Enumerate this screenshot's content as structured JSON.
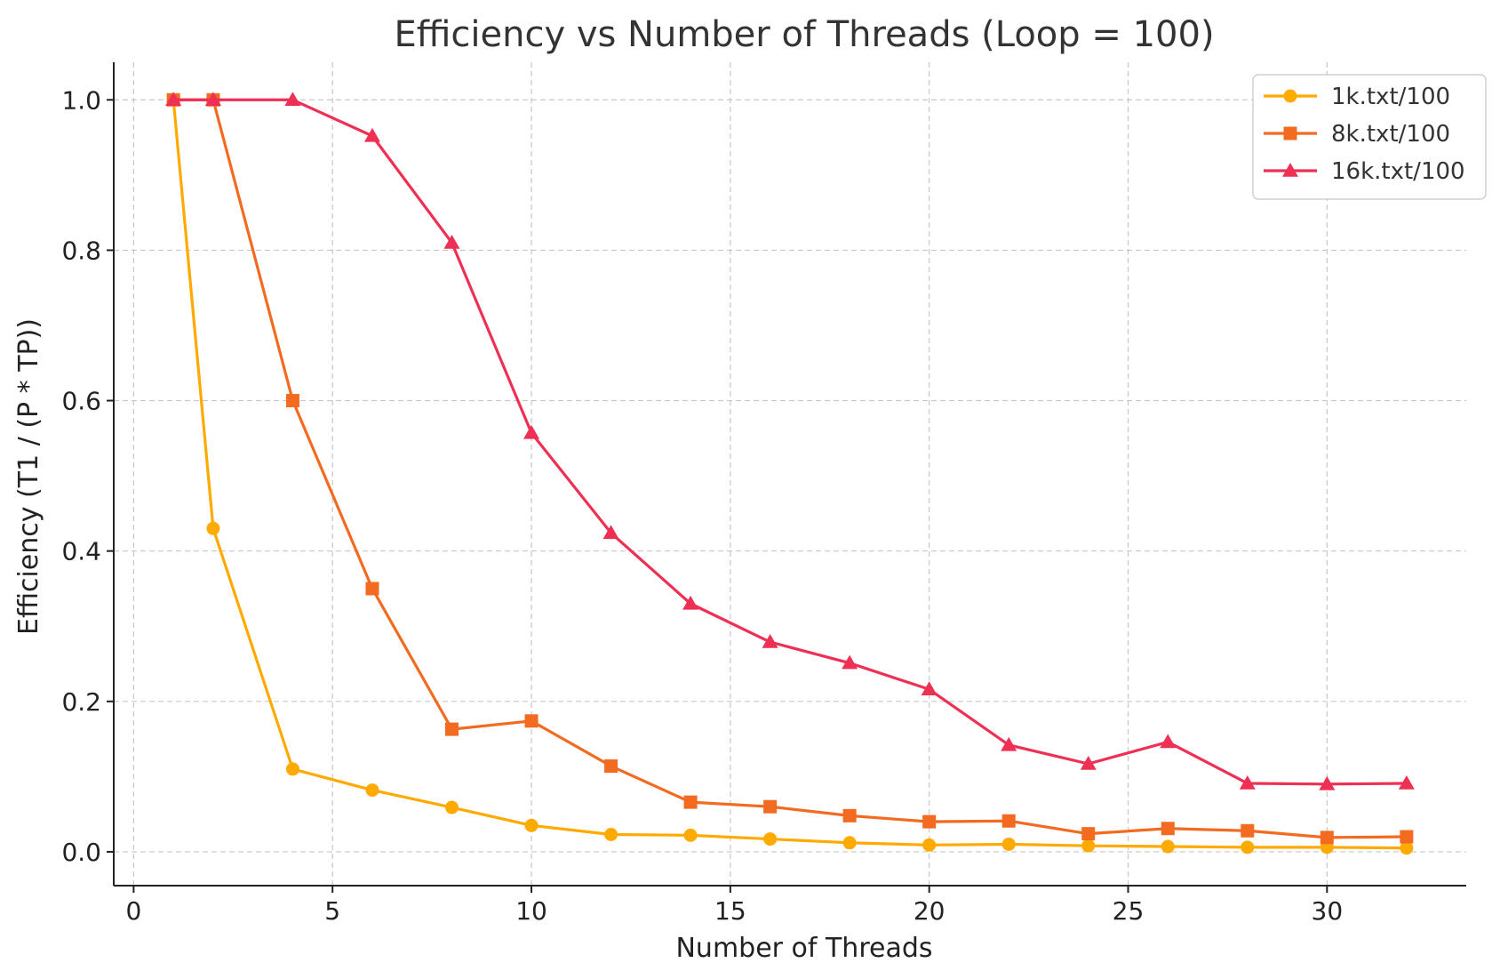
{
  "chart_data": {
    "type": "line",
    "title": "Efficiency vs Number of Threads (Loop = 100)",
    "xlabel": "Number of Threads",
    "ylabel": "Efficiency (T1 / (P * TP))",
    "xlim": [
      -0.5,
      33.5
    ],
    "ylim": [
      -0.045,
      1.05
    ],
    "xticks": [
      0,
      5,
      10,
      15,
      20,
      25,
      30
    ],
    "yticks": [
      0.0,
      0.2,
      0.4,
      0.6,
      0.8,
      1.0
    ],
    "xtick_labels": [
      "0",
      "5",
      "10",
      "15",
      "20",
      "25",
      "30"
    ],
    "ytick_labels": [
      "0.0",
      "0.2",
      "0.4",
      "0.6",
      "0.8",
      "1.0"
    ],
    "grid": true,
    "legend_position": "top-right",
    "x": [
      1,
      2,
      4,
      6,
      8,
      10,
      12,
      14,
      16,
      18,
      20,
      22,
      24,
      26,
      28,
      30,
      32
    ],
    "series": [
      {
        "name": "1k.txt/100",
        "color": "#FFAA00",
        "marker": "circle",
        "values": [
          1.0,
          0.43,
          0.11,
          0.082,
          0.059,
          0.035,
          0.023,
          0.022,
          0.017,
          0.012,
          0.009,
          0.01,
          0.008,
          0.007,
          0.006,
          0.006,
          0.005
        ]
      },
      {
        "name": "8k.txt/100",
        "color": "#F26B21",
        "marker": "square",
        "values": [
          1.0,
          1.0,
          0.6,
          0.35,
          0.163,
          0.174,
          0.114,
          0.066,
          0.06,
          0.048,
          0.04,
          0.041,
          0.024,
          0.031,
          0.028,
          0.019,
          0.02
        ]
      },
      {
        "name": "16k.txt/100",
        "color": "#EE3054",
        "marker": "triangle",
        "values": [
          1.0,
          1.0,
          1.0,
          0.952,
          0.81,
          0.557,
          0.424,
          0.33,
          0.279,
          0.251,
          0.216,
          0.142,
          0.117,
          0.146,
          0.091,
          0.09,
          0.091
        ]
      }
    ]
  }
}
